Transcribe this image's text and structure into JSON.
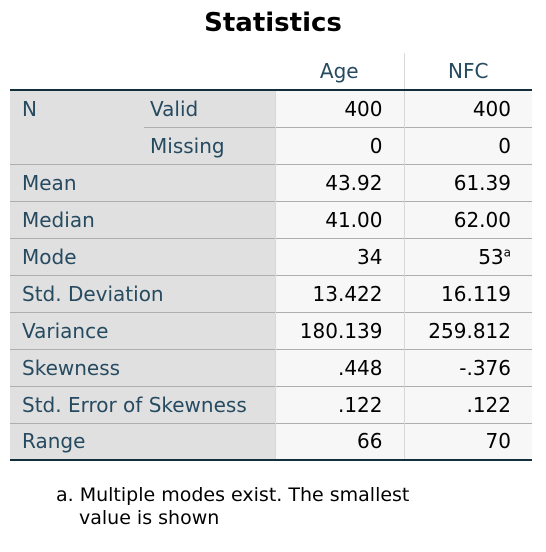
{
  "title": "Statistics",
  "columns": [
    "Age",
    "NFC"
  ],
  "rows": {
    "n_label": "N",
    "valid_label": "Valid",
    "valid": [
      "400",
      "400"
    ],
    "missing_label": "Missing",
    "missing": [
      "0",
      "0"
    ],
    "mean_label": "Mean",
    "mean": [
      "43.92",
      "61.39"
    ],
    "median_label": "Median",
    "median": [
      "41.00",
      "62.00"
    ],
    "mode_label": "Mode",
    "mode": [
      "34",
      "53"
    ],
    "mode_marker": "a",
    "sd_label": "Std. Deviation",
    "sd": [
      "13.422",
      "16.119"
    ],
    "variance_label": "Variance",
    "variance": [
      "180.139",
      "259.812"
    ],
    "skewness_label": "Skewness",
    "skewness": [
      ".448",
      "-.376"
    ],
    "se_skew_label": "Std. Error of Skewness",
    "se_skew": [
      ".122",
      ".122"
    ],
    "range_label": "Range",
    "range": [
      "66",
      "70"
    ]
  },
  "footnote": {
    "line1": "a. Multiple modes exist. The smallest",
    "line2": "value is shown"
  }
}
